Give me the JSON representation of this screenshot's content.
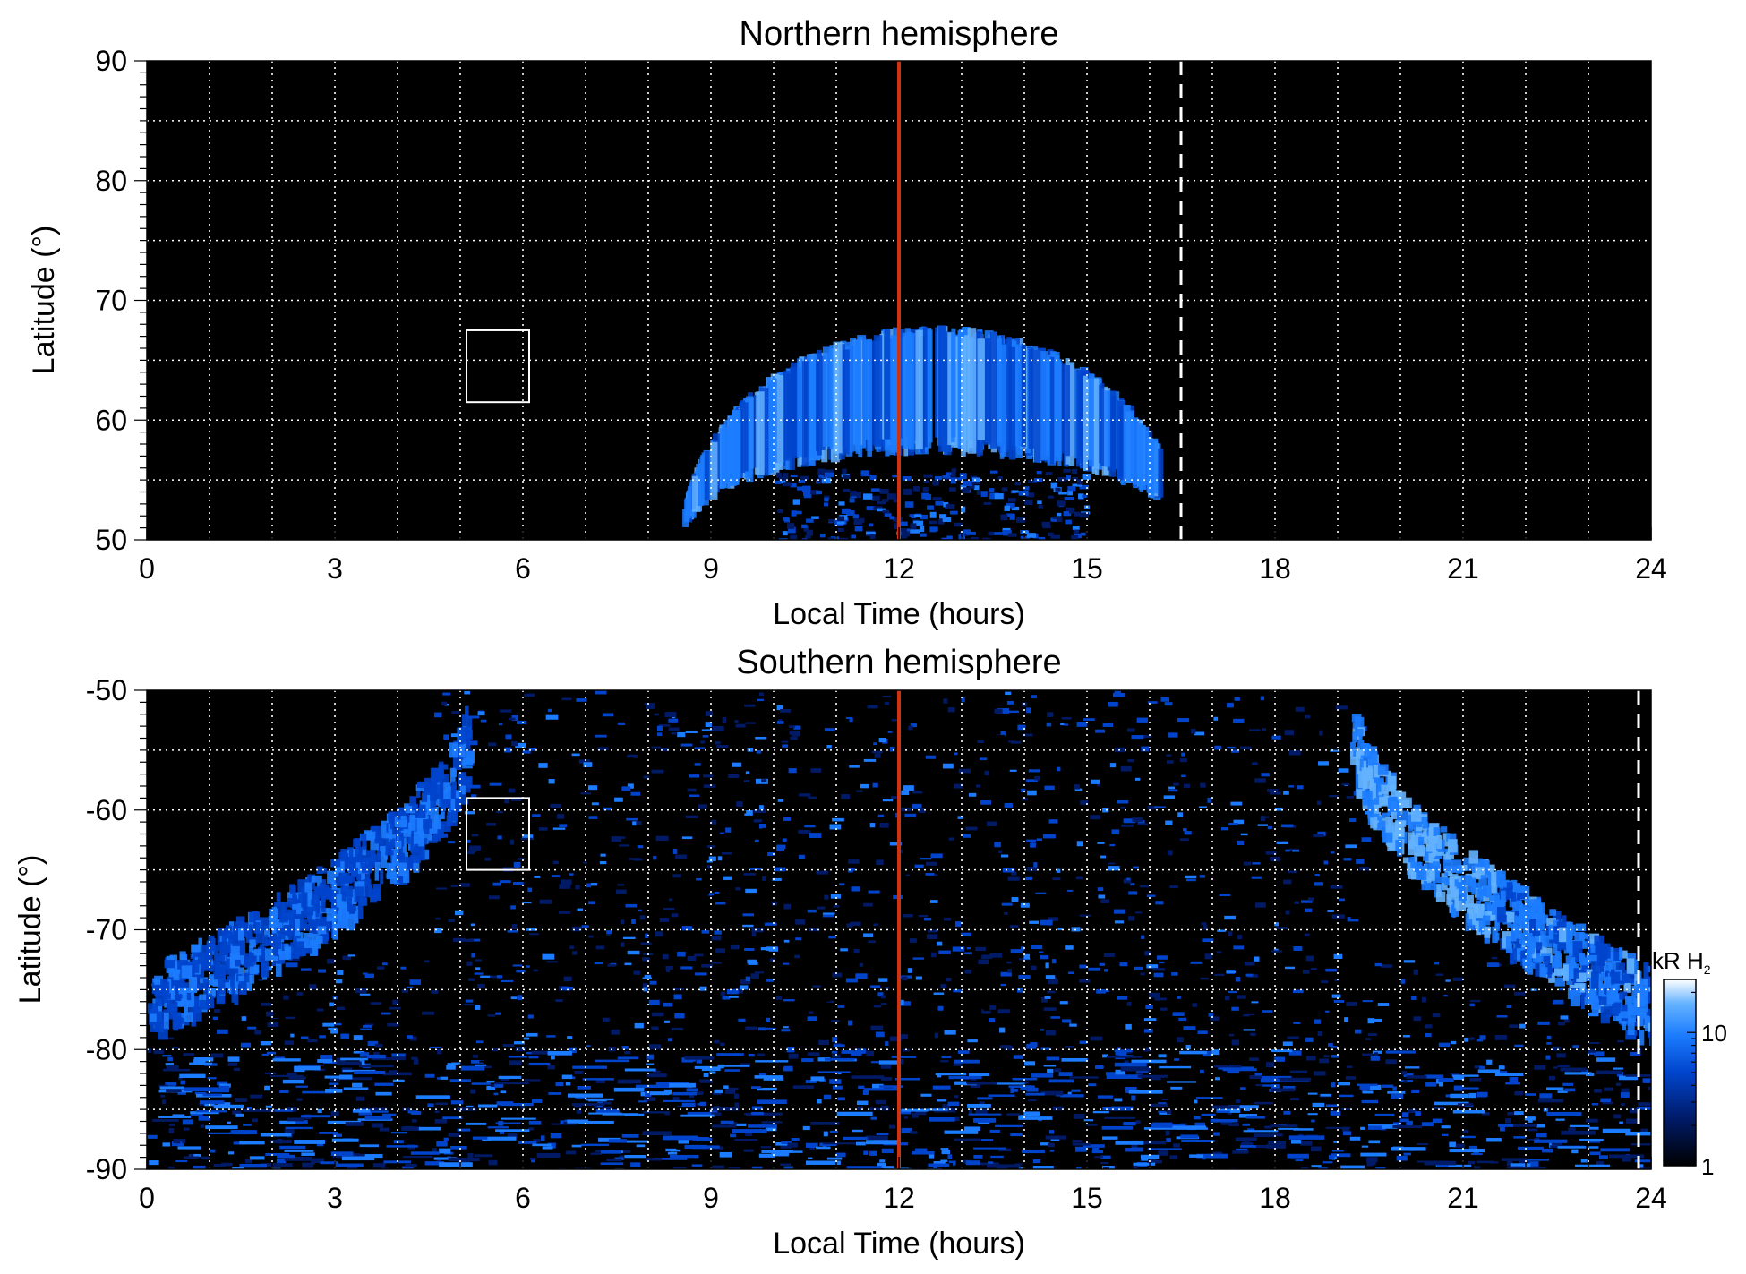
{
  "chart_data": [
    {
      "type": "heatmap",
      "title": "Northern hemisphere",
      "xlabel": "Local Time (hours)",
      "ylabel": "Latitude (°)",
      "xlim": [
        0,
        24
      ],
      "ylim": [
        50,
        90
      ],
      "xticks": [
        0,
        3,
        6,
        9,
        12,
        15,
        18,
        21,
        24
      ],
      "yticks": [
        50,
        60,
        70,
        80,
        90
      ],
      "grid": true,
      "background_color": "#000000",
      "grid_color": "#ffffff",
      "colormap": [
        "#000000",
        "#001a66",
        "#0044cc",
        "#1c7cff",
        "#64b2ff",
        "#ffffff"
      ],
      "auroral_oval": {
        "local_time_range": [
          8.4,
          16.1
        ],
        "peak_local_time": 12.5,
        "poleward_latitude_at_peak": 68,
        "equatorward_latitude_at_peak": 57,
        "min_latitude": 50
      },
      "reference_lines": [
        {
          "local_time": 12,
          "color": "#cc3311",
          "style": "solid"
        },
        {
          "local_time": 16.5,
          "color": "#ffffff",
          "style": "dashed"
        }
      ],
      "highlight_box": {
        "local_time": [
          5.1,
          6.1
        ],
        "latitude": [
          61.5,
          67.5
        ],
        "color": "#ffffff"
      }
    },
    {
      "type": "heatmap",
      "title": "Southern hemisphere",
      "xlabel": "Local Time (hours)",
      "ylabel": "Latitude (°)",
      "xlim": [
        0,
        24
      ],
      "ylim": [
        -90,
        -50
      ],
      "xticks": [
        0,
        3,
        6,
        9,
        12,
        15,
        18,
        21,
        24
      ],
      "yticks": [
        -50,
        -60,
        -70,
        -80,
        -90
      ],
      "grid": true,
      "background_color": "#000000",
      "grid_color": "#ffffff",
      "colormap": [
        "#000000",
        "#001a66",
        "#0044cc",
        "#1c7cff",
        "#64b2ff",
        "#ffffff"
      ],
      "auroral_oval": {
        "morning_arc_local_time_at_minus50": 5.1,
        "evening_arc_local_time_at_minus50": 19.2,
        "latitude_at_edges": -70,
        "brightest_segment_local_time": [
          18.8,
          21.5
        ]
      },
      "reference_lines": [
        {
          "local_time": 12,
          "color": "#cc3311",
          "style": "solid"
        },
        {
          "local_time": 23.8,
          "color": "#ffffff",
          "style": "dashed"
        }
      ],
      "highlight_box": {
        "local_time": [
          5.1,
          6.1
        ],
        "latitude": [
          -65,
          -59
        ],
        "color": "#ffffff"
      },
      "colorbar": {
        "label_main": "kR H",
        "label_subscript": "2",
        "scale": "log",
        "ticks": [
          1,
          10
        ],
        "range": [
          1,
          25
        ]
      }
    }
  ]
}
